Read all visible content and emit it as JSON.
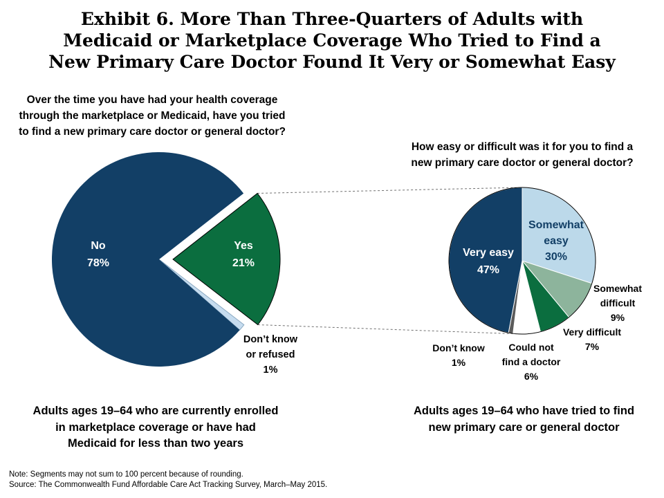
{
  "title": {
    "lines": [
      "Exhibit 6. More Than Three-Quarters of Adults with",
      "Medicaid or Marketplace Coverage Who Tried to Find a",
      "New Primary Care Doctor Found It Very or Somewhat Easy"
    ]
  },
  "left_question": {
    "lines": [
      "Over the time you have had your health coverage",
      "through the marketplace or Medicaid, have you tried",
      "to find a new primary care doctor or general doctor?"
    ]
  },
  "right_question": {
    "lines": [
      "How easy or difficult was it for you to find a",
      "new primary care doctor or general doctor?"
    ]
  },
  "left_caption": {
    "lines": [
      "Adults ages 19–64 who are currently enrolled",
      "in marketplace coverage or have had",
      "Medicaid for less than two years"
    ]
  },
  "right_caption": {
    "lines": [
      "Adults ages 19–64 who have tried to find",
      "new primary care or general doctor"
    ]
  },
  "note": "Note: Segments may not sum to 100  percent because of rounding.",
  "source": "Source: The Commonwealth Fund Affordable Care Act Tracking Survey, March–May 2015.",
  "chart_data": [
    {
      "type": "pie",
      "title": "Over the time you have had your health coverage through the marketplace or Medicaid, have you tried to find a new primary care doctor or general doctor?",
      "slices": [
        {
          "key": "yes",
          "name": "Yes",
          "value": 21,
          "pct_label": "21%",
          "color": "#0b6e3f",
          "exploded": true
        },
        {
          "key": "dont_know",
          "name": "Don’t know or refused",
          "label_lines": [
            "Don’t know",
            "or refused"
          ],
          "value": 1,
          "pct_label": "1%",
          "color": "#c6dcef"
        },
        {
          "key": "no",
          "name": "No",
          "value": 78,
          "pct_label": "78%",
          "color": "#123f66"
        }
      ]
    },
    {
      "type": "pie",
      "title": "How easy or difficult was it for you to find a new primary care doctor or general doctor?",
      "slices": [
        {
          "key": "somewhat_easy",
          "name": "Somewhat easy",
          "label_lines": [
            "Somewhat",
            "easy"
          ],
          "value": 30,
          "pct_label": "30%",
          "color": "#bcd9ea"
        },
        {
          "key": "somewhat_difficult",
          "name": "Somewhat difficult",
          "label_lines": [
            "Somewhat",
            "difficult"
          ],
          "value": 9,
          "pct_label": "9%",
          "color": "#8db49c"
        },
        {
          "key": "very_difficult",
          "name": "Very difficult",
          "label_lines": [
            "Very difficult"
          ],
          "value": 7,
          "pct_label": "7%",
          "color": "#0b6e3f"
        },
        {
          "key": "could_not_find",
          "name": "Could not find a doctor",
          "label_lines": [
            "Could not",
            "find a doctor"
          ],
          "value": 6,
          "pct_label": "6%",
          "color": "#ffffff"
        },
        {
          "key": "dont_know",
          "name": "Don’t know",
          "label_lines": [
            "Don’t know"
          ],
          "value": 1,
          "pct_label": "1%",
          "color": "#5b5b5b"
        },
        {
          "key": "very_easy",
          "name": "Very easy",
          "label_lines": [
            "Very easy"
          ],
          "value": 47,
          "pct_label": "47%",
          "color": "#123f66"
        }
      ]
    }
  ]
}
